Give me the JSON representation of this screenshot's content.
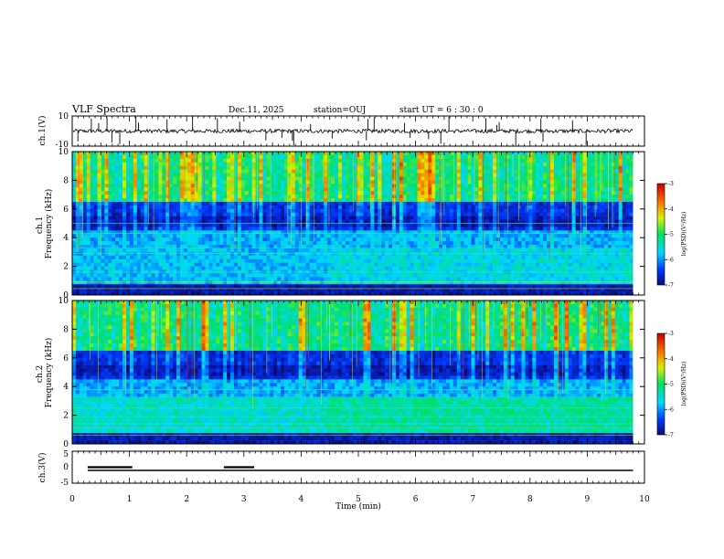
{
  "header": {
    "title": "VLF Spectra",
    "date": "Dec.11, 2025",
    "station": "station=OUJ",
    "start_time": "start  UT =  6 : 30 : 0"
  },
  "chart_data": [
    {
      "type": "line",
      "panel": "ch1-waveform",
      "ylabel": "ch.1(V)",
      "ylim": [
        -10,
        10
      ],
      "yticks": [
        "10",
        "-10"
      ],
      "baseline": 0,
      "xlim": [
        0,
        9.8
      ]
    },
    {
      "type": "heatmap",
      "panel": "ch1-spectrogram",
      "ylabel": "ch.1\nFrequency (kHz)",
      "ylim": [
        0,
        10
      ],
      "yticks": [
        "0",
        "2",
        "4",
        "6",
        "8",
        "10"
      ],
      "xlim": [
        0,
        9.8
      ],
      "colorbar": {
        "label": "log(PSD)(V²/Hz)",
        "range": [
          -7,
          -3
        ],
        "ticks": [
          "-7",
          "-6",
          "-5",
          "-4",
          "-3"
        ]
      }
    },
    {
      "type": "heatmap",
      "panel": "ch2-spectrogram",
      "ylabel": "ch.2\nFrequency (kHz)",
      "ylim": [
        0,
        10
      ],
      "yticks": [
        "0",
        "2",
        "4",
        "6",
        "8",
        "10"
      ],
      "xlim": [
        0,
        9.8
      ],
      "colorbar": {
        "label": "log(PSD)(V²/Hz)",
        "range": [
          -7,
          -3
        ],
        "ticks": [
          "-7",
          "-6",
          "-5",
          "-4",
          "-3"
        ]
      }
    },
    {
      "type": "line",
      "panel": "ch3-signal",
      "ylabel": "ch.3(V)",
      "ylim": [
        -5,
        5
      ],
      "yticks": [
        "5",
        "0",
        "-5"
      ],
      "baseline": -1,
      "high_segments": [
        [
          0.27,
          1.05
        ],
        [
          2.65,
          3.18
        ]
      ],
      "high_level": 0,
      "xlim": [
        0,
        9.8
      ]
    }
  ],
  "xaxis": {
    "label": "Time (min)",
    "range": [
      0,
      10
    ],
    "ticks": [
      "0",
      "1",
      "2",
      "3",
      "4",
      "5",
      "6",
      "7",
      "8",
      "9",
      "10"
    ]
  }
}
